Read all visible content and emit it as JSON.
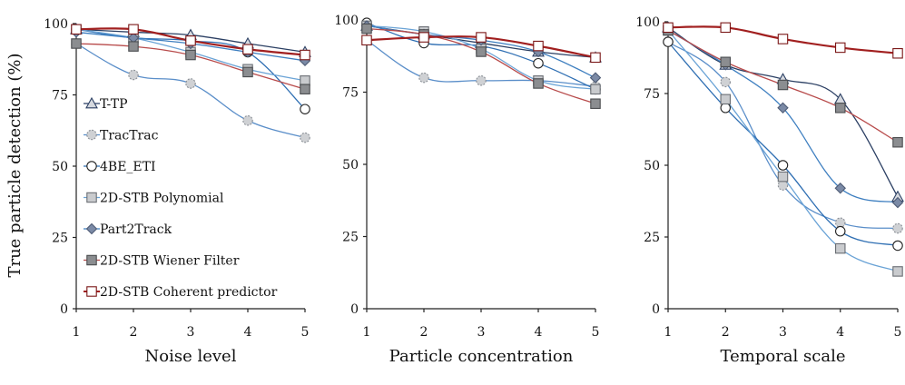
{
  "figure": {
    "ylabel": "True particle detection (%)"
  },
  "chart_data": [
    {
      "type": "line",
      "xlabel": "Noise level",
      "ylabel": "True particle detection (%)",
      "x": [
        1,
        2,
        3,
        4,
        5
      ],
      "xlim": [
        1,
        5
      ],
      "ylim": [
        0,
        100
      ],
      "xticks": [
        "1",
        "2",
        "3",
        "4",
        "5"
      ],
      "yticks": [
        "0",
        "25",
        "50",
        "75",
        "100"
      ],
      "legend_position": "left-middle",
      "series": [
        {
          "name": "T-TP",
          "values": [
            98,
            97,
            96,
            93,
            90
          ]
        },
        {
          "name": "TracTrac",
          "values": [
            93,
            82,
            79,
            66,
            60
          ]
        },
        {
          "name": "4BE_ETI",
          "values": [
            98,
            95,
            94,
            90,
            70
          ]
        },
        {
          "name": "2D-STB Polynomial",
          "values": [
            98,
            95,
            90,
            84,
            80
          ]
        },
        {
          "name": "Part2Track",
          "values": [
            97,
            95,
            93,
            90,
            87
          ]
        },
        {
          "name": "2D-STB Wiener Filter",
          "values": [
            93,
            92,
            89,
            83,
            77
          ]
        },
        {
          "name": "2D-STB Coherent predictor",
          "values": [
            98,
            98,
            94,
            91,
            89
          ]
        }
      ]
    },
    {
      "type": "line",
      "xlabel": "Particle concentration",
      "ylabel": "",
      "x": [
        1,
        2,
        3,
        4,
        5
      ],
      "xlim": [
        1,
        5
      ],
      "ylim": [
        0,
        100
      ],
      "xticks": [
        "1",
        "2",
        "3",
        "4",
        "5"
      ],
      "yticks": [
        "0",
        "25",
        "50",
        "75",
        "100"
      ],
      "series": [
        {
          "name": "T-TP",
          "values": [
            98,
            95,
            92,
            89,
            87
          ]
        },
        {
          "name": "TracTrac",
          "values": [
            93,
            80,
            79,
            79,
            77
          ]
        },
        {
          "name": "4BE_ETI",
          "values": [
            99,
            92,
            91,
            85,
            76
          ]
        },
        {
          "name": "2D-STB Polynomial",
          "values": [
            98,
            96,
            90,
            79,
            76
          ]
        },
        {
          "name": "Part2Track",
          "values": [
            98,
            95,
            93,
            89,
            80
          ]
        },
        {
          "name": "2D-STB Wiener Filter",
          "values": [
            97,
            95,
            89,
            78,
            71
          ]
        },
        {
          "name": "2D-STB Coherent predictor",
          "values": [
            93,
            94,
            94,
            91,
            87
          ]
        }
      ]
    },
    {
      "type": "line",
      "xlabel": "Temporal scale",
      "ylabel": "",
      "x": [
        1,
        2,
        3,
        4,
        5
      ],
      "xlim": [
        1,
        5
      ],
      "ylim": [
        0,
        100
      ],
      "xticks": [
        "1",
        "2",
        "3",
        "4",
        "5"
      ],
      "yticks": [
        "0",
        "25",
        "50",
        "75",
        "100"
      ],
      "series": [
        {
          "name": "T-TP",
          "values": [
            98,
            85,
            80,
            73,
            39
          ]
        },
        {
          "name": "TracTrac",
          "values": [
            93,
            79,
            43,
            30,
            28
          ]
        },
        {
          "name": "4BE_ETI",
          "values": [
            93,
            70,
            50,
            27,
            22
          ]
        },
        {
          "name": "2D-STB Polynomial",
          "values": [
            97,
            73,
            46,
            21,
            13
          ]
        },
        {
          "name": "Part2Track",
          "values": [
            97,
            85,
            70,
            42,
            37
          ]
        },
        {
          "name": "2D-STB Wiener Filter",
          "values": [
            97,
            86,
            78,
            70,
            58
          ]
        },
        {
          "name": "2D-STB Coherent predictor",
          "values": [
            98,
            98,
            94,
            91,
            89
          ]
        }
      ]
    }
  ],
  "series_styles": [
    {
      "name": "T-TP",
      "line": "#2b3f63",
      "marker": "triangle",
      "fill": "#d6d9df",
      "stroke": "#2b3f63"
    },
    {
      "name": "TracTrac",
      "line": "#5a8ec9",
      "marker": "circle",
      "fill": "#cfd1d4",
      "stroke": "#8a8f96",
      "dashed_marker": true
    },
    {
      "name": "4BE_ETI",
      "line": "#2f6fb3",
      "marker": "circle",
      "fill": "#ffffff",
      "stroke": "#222222"
    },
    {
      "name": "2D-STB Polynomial",
      "line": "#6aa3d6",
      "marker": "square",
      "fill": "#c9cbce",
      "stroke": "#6a6e74"
    },
    {
      "name": "Part2Track",
      "line": "#3e7fc0",
      "marker": "diamond",
      "fill": "#7b8aa6",
      "stroke": "#4f5c75"
    },
    {
      "name": "2D-STB Wiener Filter",
      "line": "#b84b4b",
      "marker": "square",
      "fill": "#8b8d90",
      "stroke": "#4a4c4f"
    },
    {
      "name": "2D-STB Coherent predictor",
      "line": "#a11f1f",
      "marker": "square",
      "fill": "#ffffff",
      "stroke": "#7a1616"
    }
  ]
}
